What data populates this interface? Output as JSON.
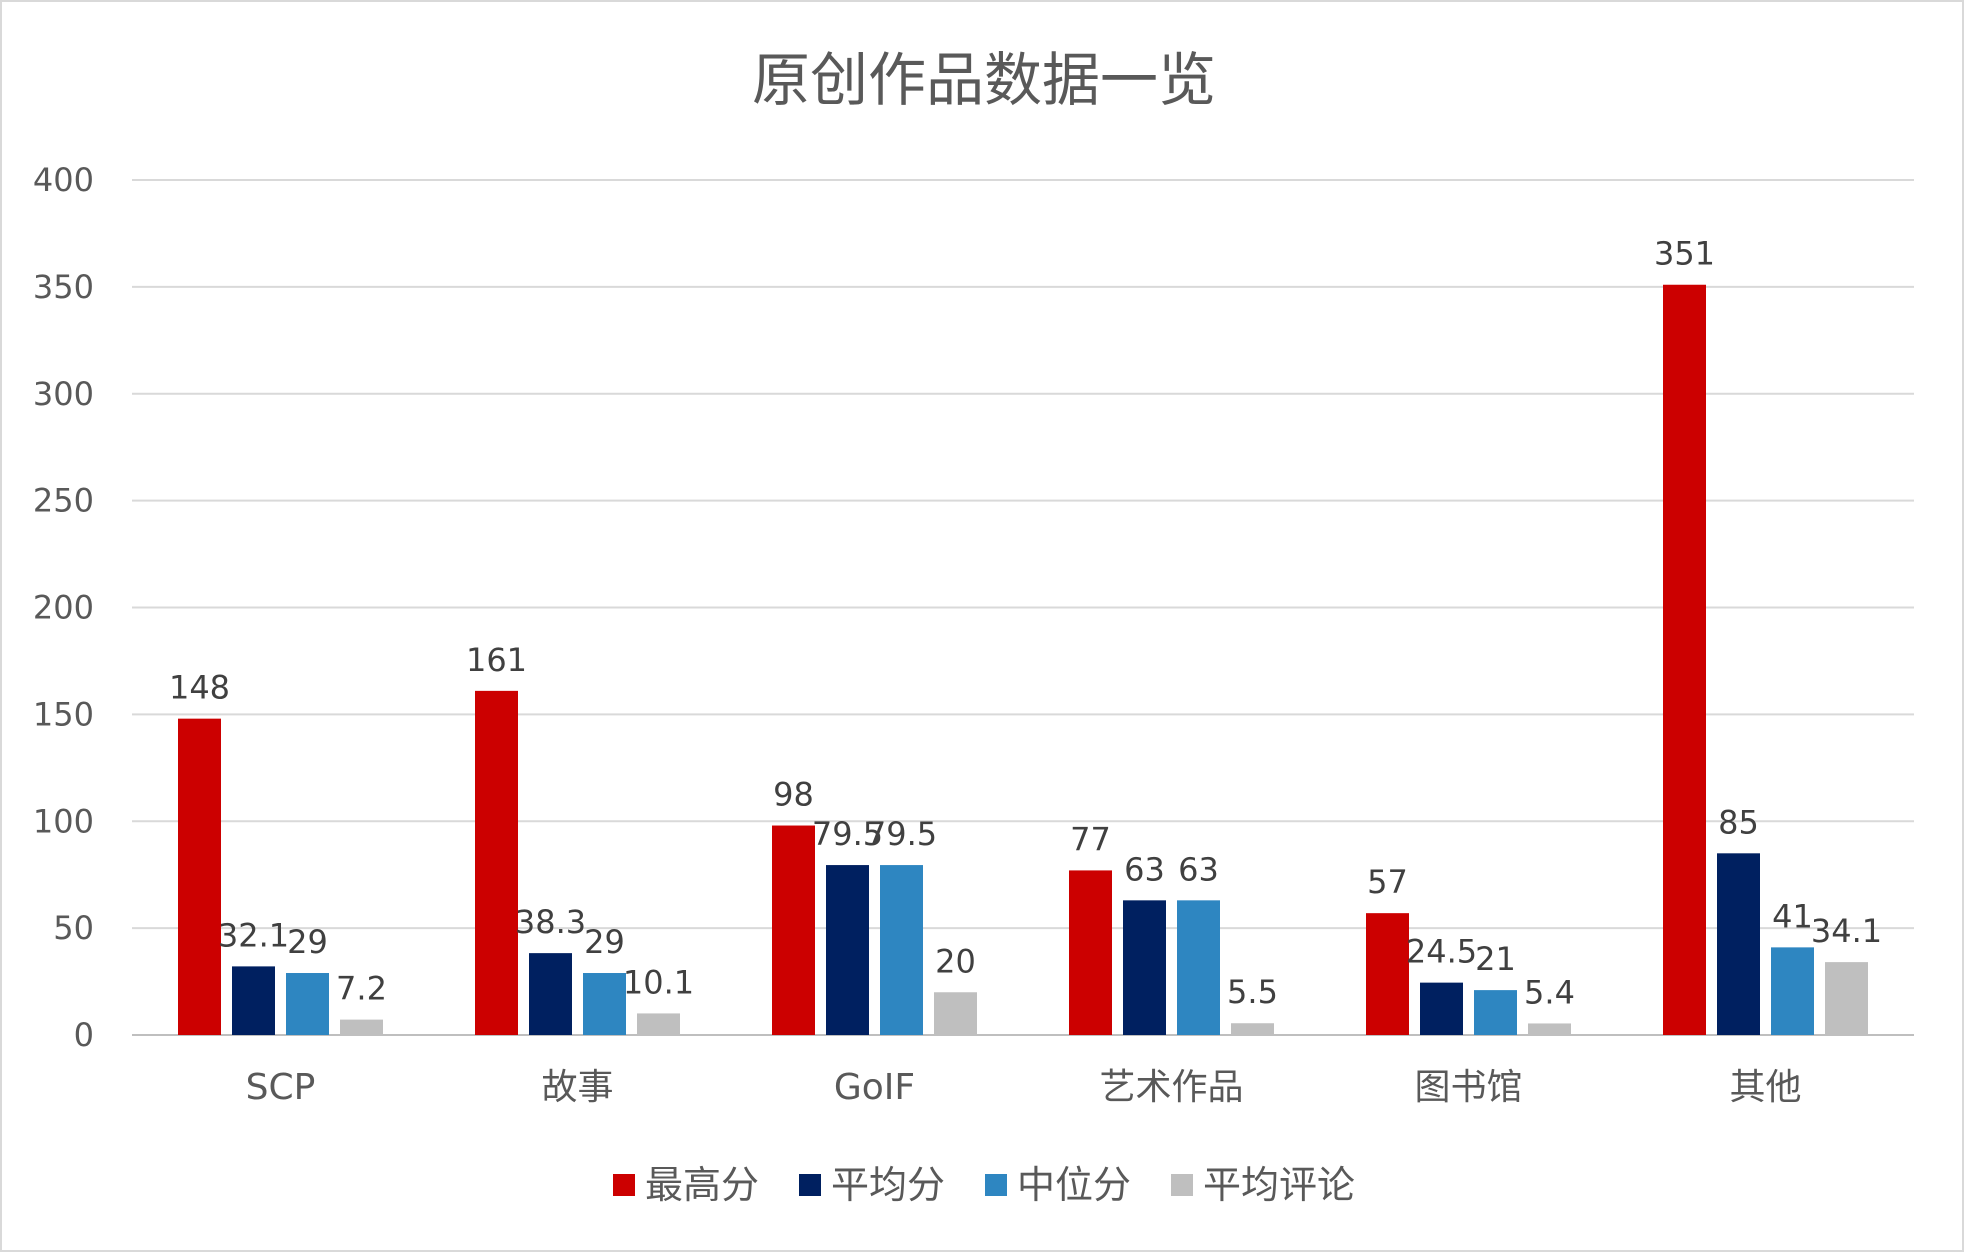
{
  "chart_data": {
    "type": "bar",
    "title": "原创作品数据一览",
    "xlabel": "",
    "ylabel": "",
    "categories": [
      "SCP",
      "故事",
      "GoIF",
      "艺术作品",
      "图书馆",
      "其他"
    ],
    "series": [
      {
        "name": "最高分",
        "color": "#cc0000",
        "values": [
          148,
          161,
          98,
          77,
          57,
          351
        ],
        "labels": [
          "148",
          "161",
          "98",
          "77",
          "57",
          "351"
        ]
      },
      {
        "name": "平均分",
        "color": "#002060",
        "values": [
          32.1,
          38.3,
          79.5,
          63,
          24.5,
          85
        ],
        "labels": [
          "32.1",
          "38.3",
          "79.5",
          "63",
          "24.5",
          "85"
        ]
      },
      {
        "name": "中位分",
        "color": "#2e86c1",
        "values": [
          29,
          29,
          79.5,
          63,
          21,
          41
        ],
        "labels": [
          "29",
          "29",
          "79.5",
          "63",
          "21",
          "41"
        ]
      },
      {
        "name": "平均评论",
        "color": "#bfbfbf",
        "values": [
          7.2,
          10.1,
          20,
          5.5,
          5.4,
          34.1
        ],
        "labels": [
          "7.2",
          "10.1",
          "20",
          "5.5",
          "5.4",
          "34.1"
        ]
      }
    ],
    "ylim": [
      0,
      400
    ],
    "yticks": [
      "0",
      "50",
      "100",
      "150",
      "200",
      "250",
      "300",
      "350",
      "400"
    ],
    "grid": true,
    "legend_position": "bottom"
  }
}
